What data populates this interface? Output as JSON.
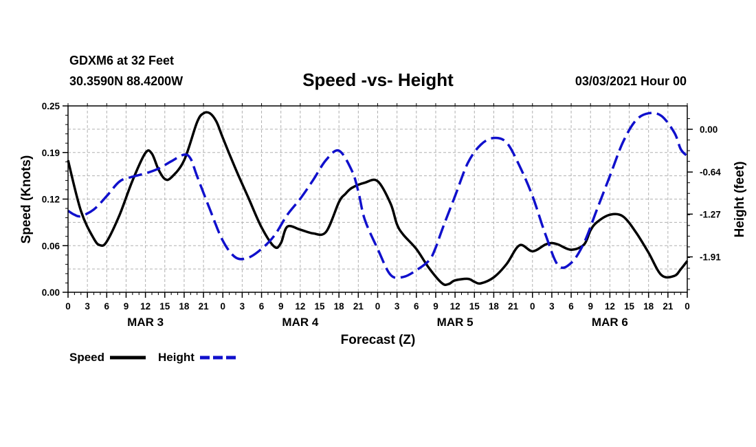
{
  "header": {
    "station": "GDXM6 at 32 Feet",
    "location": "30.3590N 88.4200W",
    "title": "Speed -vs- Height",
    "date": "03/03/2021 Hour 00"
  },
  "legend": {
    "speed_label": "Speed",
    "height_label": "Height"
  },
  "colors": {
    "speed": "#000000",
    "height": "#1010cc",
    "grid": "#b0b0b0"
  },
  "chart_data": {
    "type": "line",
    "title": "Speed -vs- Height",
    "xlabel": "Forecast (Z)",
    "ylabel": "Speed (Knots)",
    "y2label": "Height (feet)",
    "xlim": [
      0,
      96
    ],
    "ylim": [
      0,
      0.25
    ],
    "y2lim": [
      -2.44,
      0.35
    ],
    "y_ticks": [
      "0.00",
      "0.06",
      "0.12",
      "0.19",
      "0.25"
    ],
    "y_tick_values": [
      0,
      0.0625,
      0.125,
      0.1875,
      0.25
    ],
    "y2_ticks": [
      "0.00",
      "-0.64",
      "-1.27",
      "-1.91"
    ],
    "y2_tick_values": [
      0,
      -0.64,
      -1.27,
      -1.91
    ],
    "x_ticks": [
      "0",
      "3",
      "6",
      "9",
      "12",
      "15",
      "18",
      "21",
      "0",
      "3",
      "6",
      "9",
      "12",
      "15",
      "18",
      "21",
      "0",
      "3",
      "6",
      "9",
      "12",
      "15",
      "18",
      "21",
      "0",
      "3",
      "6",
      "9",
      "12",
      "15",
      "18",
      "21",
      "0"
    ],
    "day_labels": [
      {
        "label": "MAR 3",
        "hour": 12
      },
      {
        "label": "MAR 4",
        "hour": 36
      },
      {
        "label": "MAR 5",
        "hour": 60
      },
      {
        "label": "MAR 6",
        "hour": 84
      }
    ],
    "grid": true,
    "series": [
      {
        "name": "Speed",
        "axis": "left",
        "style": "solid",
        "x": [
          0,
          2,
          4,
          5,
          6,
          8,
          10,
          12,
          13,
          14,
          15,
          16,
          18,
          20,
          21,
          22,
          23,
          24,
          26,
          28,
          30,
          32,
          33,
          34,
          36,
          38,
          40,
          42,
          43,
          44,
          46,
          48,
          50,
          51,
          52,
          54,
          56,
          58,
          59,
          60,
          62,
          63,
          64,
          66,
          68,
          70,
          72,
          74,
          75,
          76,
          78,
          80,
          81,
          82,
          84,
          86,
          88,
          90,
          92,
          94,
          95,
          96
        ],
        "values": [
          0.177,
          0.109,
          0.072,
          0.063,
          0.068,
          0.104,
          0.15,
          0.187,
          0.186,
          0.165,
          0.152,
          0.154,
          0.177,
          0.228,
          0.24,
          0.24,
          0.229,
          0.207,
          0.165,
          0.126,
          0.087,
          0.061,
          0.066,
          0.088,
          0.084,
          0.079,
          0.081,
          0.121,
          0.132,
          0.14,
          0.147,
          0.149,
          0.119,
          0.091,
          0.077,
          0.058,
          0.032,
          0.012,
          0.011,
          0.016,
          0.018,
          0.014,
          0.012,
          0.02,
          0.038,
          0.063,
          0.055,
          0.064,
          0.066,
          0.064,
          0.057,
          0.064,
          0.083,
          0.094,
          0.104,
          0.102,
          0.081,
          0.053,
          0.023,
          0.022,
          0.031,
          0.042
        ]
      },
      {
        "name": "Height",
        "axis": "right",
        "style": "dashed",
        "x": [
          0,
          1,
          2,
          4,
          6,
          8,
          10,
          12,
          14,
          16,
          18,
          19,
          20,
          22,
          24,
          26,
          28,
          30,
          32,
          34,
          36,
          38,
          40,
          42,
          44,
          45,
          46,
          48,
          50,
          52,
          54,
          56,
          57,
          58,
          60,
          62,
          64,
          66,
          68,
          70,
          72,
          74,
          76,
          78,
          80,
          82,
          84,
          86,
          88,
          90,
          92,
          94,
          95,
          96
        ],
        "values": [
          -1.22,
          -1.28,
          -1.3,
          -1.2,
          -1.0,
          -0.78,
          -0.71,
          -0.66,
          -0.59,
          -0.48,
          -0.38,
          -0.44,
          -0.7,
          -1.2,
          -1.67,
          -1.92,
          -1.92,
          -1.79,
          -1.59,
          -1.28,
          -1.04,
          -0.76,
          -0.46,
          -0.32,
          -0.62,
          -0.93,
          -1.35,
          -1.79,
          -2.18,
          -2.21,
          -2.11,
          -1.96,
          -1.77,
          -1.5,
          -1.0,
          -0.5,
          -0.23,
          -0.13,
          -0.2,
          -0.55,
          -1.0,
          -1.57,
          -2.04,
          -2.0,
          -1.7,
          -1.2,
          -0.7,
          -0.2,
          0.13,
          0.24,
          0.2,
          -0.05,
          -0.3,
          -0.4
        ]
      }
    ]
  }
}
